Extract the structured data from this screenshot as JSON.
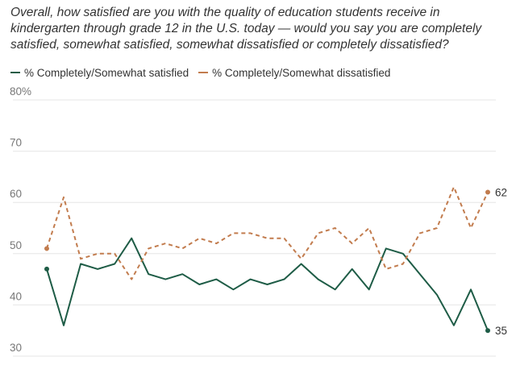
{
  "chart_data": {
    "type": "line",
    "title": "Overall, how satisfied are you with the quality of education students receive in kindergarten through grade 12 in the U.S. today — would you say you are completely satisfied, somewhat satisfied, somewhat dissatisfied or completely dissatisfied?",
    "ylim": [
      30,
      80
    ],
    "y_ticks": [
      "80%",
      "70",
      "60",
      "50",
      "40",
      "30"
    ],
    "grid": true,
    "legend_position": "top-left",
    "series": [
      {
        "name": "% Completely/Somewhat satisfied",
        "color": "#1e5c46",
        "style": "solid",
        "values": [
          47,
          36,
          48,
          47,
          48,
          53,
          46,
          45,
          46,
          44,
          45,
          43,
          45,
          44,
          45,
          48,
          45,
          43,
          47,
          43,
          51,
          50,
          46,
          42,
          36,
          43,
          35
        ],
        "end_label": "35"
      },
      {
        "name": "% Completely/Somewhat dissatisfied",
        "color": "#c27c4e",
        "style": "dashed",
        "values": [
          51,
          61,
          49,
          50,
          50,
          45,
          51,
          52,
          51,
          53,
          52,
          54,
          54,
          53,
          53,
          49,
          54,
          55,
          52,
          55,
          47,
          48,
          54,
          55,
          63,
          55,
          62
        ],
        "end_label": "62"
      }
    ]
  }
}
